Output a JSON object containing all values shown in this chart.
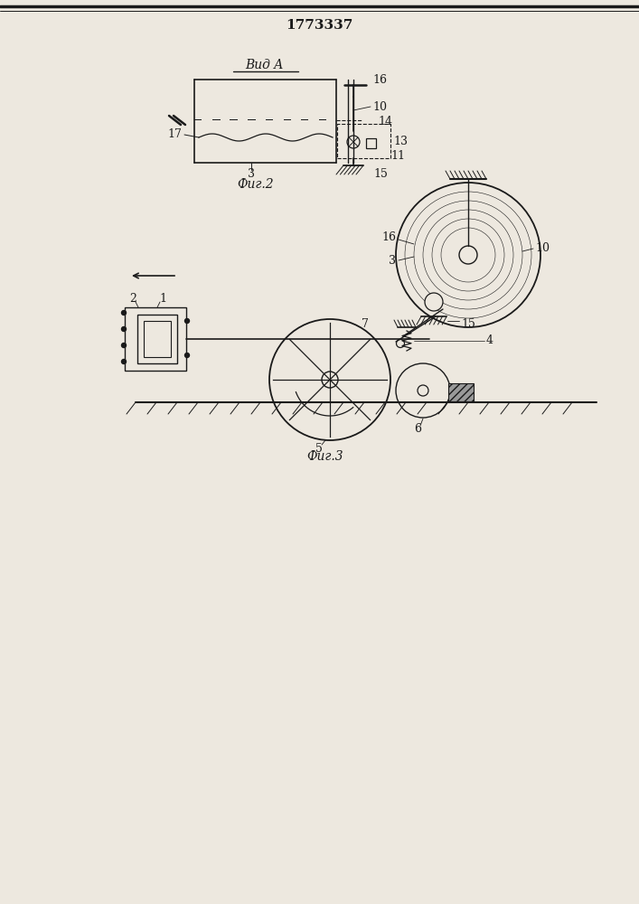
{
  "patent_number": "1773337",
  "bg_color": "#ede8df",
  "line_color": "#1a1a1a",
  "fig2_label": "Фиг.2",
  "fig3_label": "Фиг.3",
  "vid_label": "Вид A",
  "fig_width": 7.07,
  "fig_height": 10.0
}
